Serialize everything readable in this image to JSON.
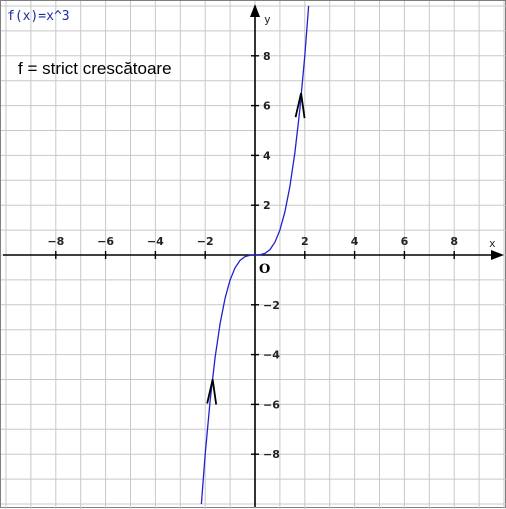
{
  "function_label": "f(x)=x^3",
  "annotation": "f = strict crescătoare",
  "origin_label": "O",
  "chart_data": {
    "type": "line",
    "title": "",
    "xlabel": "x",
    "ylabel": "y",
    "xlim": [
      -10,
      10
    ],
    "ylim": [
      -10,
      10
    ],
    "grid": true,
    "x_ticks": [
      -8,
      -6,
      -4,
      -2,
      2,
      4,
      6,
      8
    ],
    "y_ticks": [
      -8,
      -6,
      -4,
      -2,
      2,
      4,
      6,
      8
    ],
    "x_tick_labels": [
      "−8",
      "−6",
      "−4",
      "−2",
      "2",
      "4",
      "6",
      "8"
    ],
    "y_tick_labels": [
      "−8",
      "−6",
      "−4",
      "−2",
      "2",
      "4",
      "6",
      "8"
    ],
    "series": [
      {
        "expression": "x^3",
        "color": "#2222cc",
        "x": [
          -2.154,
          -2.0,
          -1.8,
          -1.6,
          -1.4,
          -1.2,
          -1.0,
          -0.8,
          -0.6,
          -0.4,
          -0.2,
          0.0,
          0.2,
          0.4,
          0.6,
          0.8,
          1.0,
          1.2,
          1.4,
          1.6,
          1.8,
          2.0,
          2.154
        ],
        "y": [
          -10.0,
          -8.0,
          -5.832,
          -4.096,
          -2.744,
          -1.728,
          -1.0,
          -0.512,
          -0.216,
          -0.064,
          -0.008,
          0.0,
          0.008,
          0.064,
          0.216,
          0.512,
          1.0,
          1.728,
          2.744,
          4.096,
          5.832,
          8.0,
          10.0
        ]
      }
    ],
    "direction_arrows": [
      {
        "x": -1.7,
        "y": -5.0
      },
      {
        "x": 1.85,
        "y": 6.5
      }
    ],
    "colors": {
      "grid": "#c8c8c8",
      "axes": "#000000",
      "curve": "#2222cc",
      "function_label": "#1a2aa6"
    }
  }
}
